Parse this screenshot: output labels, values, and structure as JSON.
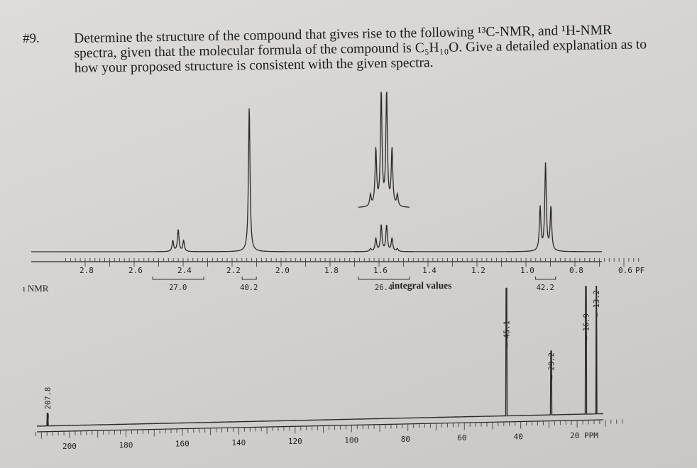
{
  "problem": {
    "number": "#9.",
    "text_line1": "Determine the structure of the compound that gives rise to the following ¹³C-NMR, and ¹H-NMR",
    "text_line2": "spectra, given that the molecular formula of the compound is C₅H₁₀O. Give a detailed explanation as to",
    "text_line3": "how your proposed structure is consistent with the given spectra."
  },
  "chart_data": [
    {
      "type": "line",
      "spectrum": "1H-NMR",
      "x_unit_label": "PPM",
      "axis_label_suffix": "PF",
      "xlim": [
        2.9,
        0.5
      ],
      "x_reversed": true,
      "tick_labels": [
        "2.8",
        "2.6",
        "2.4",
        "2.2",
        "2.0",
        "1.8",
        "1.6",
        "1.4",
        "1.2",
        "1.0",
        "0.8",
        "0.6"
      ],
      "peaks": [
        {
          "shift": 2.42,
          "multiplicity": "triplet",
          "relative_height": 0.15
        },
        {
          "shift": 2.13,
          "multiplicity": "singlet",
          "relative_height": 1.0
        },
        {
          "shift": 1.58,
          "multiplicity": "sextet",
          "relative_height": 0.18,
          "inset_relative_height": 0.78
        },
        {
          "shift": 0.92,
          "multiplicity": "triplet",
          "relative_height": 0.6
        }
      ],
      "integrals": [
        {
          "shift": 2.42,
          "value": "27.0"
        },
        {
          "shift": 2.13,
          "value": "40.2"
        },
        {
          "shift": 1.58,
          "value": "26.4"
        },
        {
          "shift": 0.92,
          "value": "42.2"
        }
      ],
      "integral_caption": "integral values"
    },
    {
      "type": "line",
      "spectrum": "13C-NMR",
      "left_label": "ı NMR",
      "x_unit_label": "20 PPM",
      "xlim": [
        210,
        5
      ],
      "x_reversed": true,
      "tick_labels": [
        "200",
        "180",
        "160",
        "140",
        "120",
        "100",
        "80",
        "60",
        "40",
        "20 PPM"
      ],
      "peaks": [
        {
          "shift": 207.8,
          "label": "207.8",
          "relative_height": 0.06
        },
        {
          "shift": 45.1,
          "label": "45.1",
          "relative_height": 1.0
        },
        {
          "shift": 29.2,
          "label": "29.2",
          "relative_height": 0.5
        },
        {
          "shift": 16.9,
          "label": "16.9",
          "relative_height": 1.0
        },
        {
          "shift": 13.2,
          "label": "13.2",
          "relative_height": 1.0
        }
      ]
    }
  ]
}
